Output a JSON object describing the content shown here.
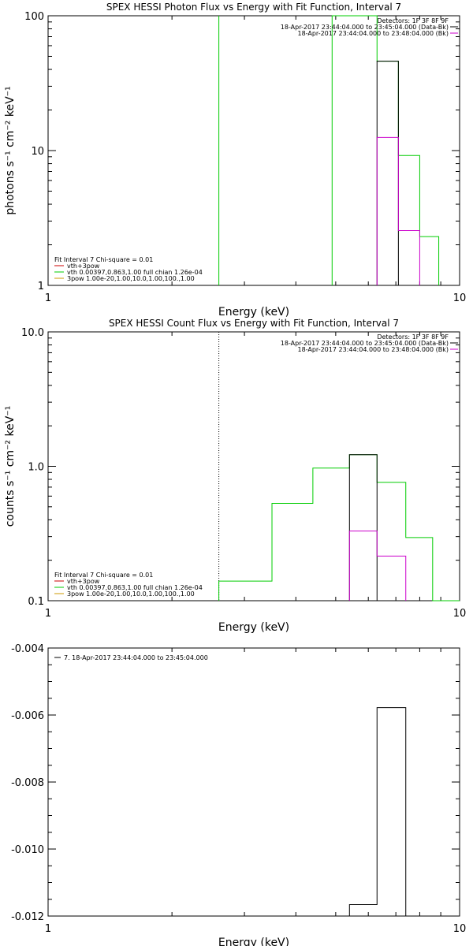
{
  "chart_data": [
    {
      "type": "line",
      "title": "SPEX HESSI Photon Flux vs Energy with Fit Function, Interval 7",
      "xlabel": "Energy (keV)",
      "ylabel": "photons s⁻¹ cm⁻² keV⁻¹",
      "x_scale": "log",
      "y_scale": "log",
      "xlim": [
        1,
        10
      ],
      "ylim": [
        1,
        100
      ],
      "x_ticks": [
        {
          "v": 1,
          "label": "1"
        },
        {
          "v": 10,
          "label": "10"
        }
      ],
      "y_ticks": [
        {
          "v": 1,
          "label": "1"
        },
        {
          "v": 10,
          "label": "10"
        },
        {
          "v": 100,
          "label": "100"
        }
      ],
      "legend_top": [
        "Detectors: 1F 3F 8F 9F",
        "18-Apr-2017 23:44:04.000 to 23:45:04.000 (Data-Bk)",
        "18-Apr-2017 23:44:04.000 to 23:48:04.000 (Bk)"
      ],
      "legend_top_colors": [
        "",
        "#000000",
        "#cc00cc"
      ],
      "legend_bottom": [
        "Fit Interval 7   Chi-square = 0.01",
        "vth+3pow",
        "vth 0.00397,0.863,1.00  full chian 1.26e-04",
        "3pow 1.00e-20,1.00,10.0,1.00,100.,1.00"
      ],
      "legend_bottom_colors": [
        "",
        "#cc0000",
        "#00cc00",
        "#cc9900"
      ],
      "vline": {
        "x": 2.6,
        "color": "#00cc00"
      },
      "series": [
        {
          "color": "#00cc00",
          "steps": [
            [
              4.9,
              5.6,
              100
            ],
            [
              5.6,
              6.3,
              100
            ],
            [
              6.3,
              7.1,
              46
            ],
            [
              7.1,
              8.0,
              9.2
            ],
            [
              8.0,
              8.9,
              2.3
            ]
          ]
        },
        {
          "color": "#000000",
          "steps": [
            [
              6.3,
              7.1,
              46
            ]
          ]
        },
        {
          "color": "#cc00cc",
          "steps": [
            [
              6.3,
              7.1,
              12.5
            ],
            [
              7.1,
              8.0,
              2.55
            ]
          ]
        }
      ]
    },
    {
      "type": "line",
      "title": "SPEX HESSI Count Flux vs Energy with Fit Function, Interval 7",
      "xlabel": "Energy (keV)",
      "ylabel": "counts s⁻¹ cm⁻² keV⁻¹",
      "x_scale": "log",
      "y_scale": "log",
      "xlim": [
        1,
        10
      ],
      "ylim": [
        0.1,
        10
      ],
      "x_ticks": [
        {
          "v": 1,
          "label": "1"
        },
        {
          "v": 10,
          "label": "10"
        }
      ],
      "y_ticks": [
        {
          "v": 0.1,
          "label": "0.1"
        },
        {
          "v": 1,
          "label": "1.0"
        },
        {
          "v": 10,
          "label": "10.0"
        }
      ],
      "legend_top": [
        "Detectors: 1F 3F 8F 9F",
        "18-Apr-2017 23:44:04.000 to 23:45:04.000 (Data-Bk)",
        "18-Apr-2017 23:44:04.000 to 23:48:04.000 (Bk)"
      ],
      "legend_top_colors": [
        "",
        "#000000",
        "#cc00cc"
      ],
      "legend_bottom": [
        "Fit Interval 7   Chi-square = 0.01",
        "vth+3pow",
        "vth 0.00397,0.863,1.00  full chian 1.26e-04",
        "3pow 1.00e-20,1.00,10.0,1.00,100.,1.00"
      ],
      "legend_bottom_colors": [
        "",
        "#cc0000",
        "#00cc00",
        "#cc9900"
      ],
      "vline": {
        "x": 2.6,
        "color": "#000000",
        "dotted": true
      },
      "series": [
        {
          "color": "#00cc00",
          "steps": [
            [
              2.6,
              3.5,
              0.14
            ],
            [
              3.5,
              4.4,
              0.53
            ],
            [
              4.4,
              5.4,
              0.97
            ],
            [
              5.4,
              6.3,
              1.22
            ],
            [
              6.3,
              7.4,
              0.76
            ],
            [
              7.4,
              8.6,
              0.295
            ],
            [
              8.6,
              10,
              0.1
            ]
          ]
        },
        {
          "color": "#000000",
          "steps": [
            [
              5.4,
              6.3,
              1.22
            ]
          ]
        },
        {
          "color": "#cc00cc",
          "steps": [
            [
              5.4,
              6.3,
              0.33
            ],
            [
              6.3,
              7.4,
              0.215
            ]
          ]
        }
      ]
    },
    {
      "type": "line",
      "title": "",
      "xlabel": "Energy (keV)",
      "ylabel": "",
      "x_scale": "log",
      "y_scale": "linear",
      "xlim": [
        1,
        10
      ],
      "ylim": [
        -0.012,
        -0.004
      ],
      "x_ticks": [
        {
          "v": 1,
          "label": "1"
        },
        {
          "v": 10,
          "label": "10"
        }
      ],
      "y_ticks": [
        {
          "v": -0.012,
          "label": "-0.012"
        },
        {
          "v": -0.01,
          "label": "-0.010"
        },
        {
          "v": -0.008,
          "label": "-0.008"
        },
        {
          "v": -0.006,
          "label": "-0.006"
        },
        {
          "v": -0.004,
          "label": "-0.004"
        }
      ],
      "legend_top_left": [
        "7. 18-Apr-2017 23:44:04.000 to 23:45:04.000"
      ],
      "series": [
        {
          "color": "#000000",
          "steps": [
            [
              5.4,
              6.3,
              -0.01166
            ],
            [
              6.3,
              7.4,
              -0.00578
            ]
          ]
        }
      ]
    }
  ]
}
